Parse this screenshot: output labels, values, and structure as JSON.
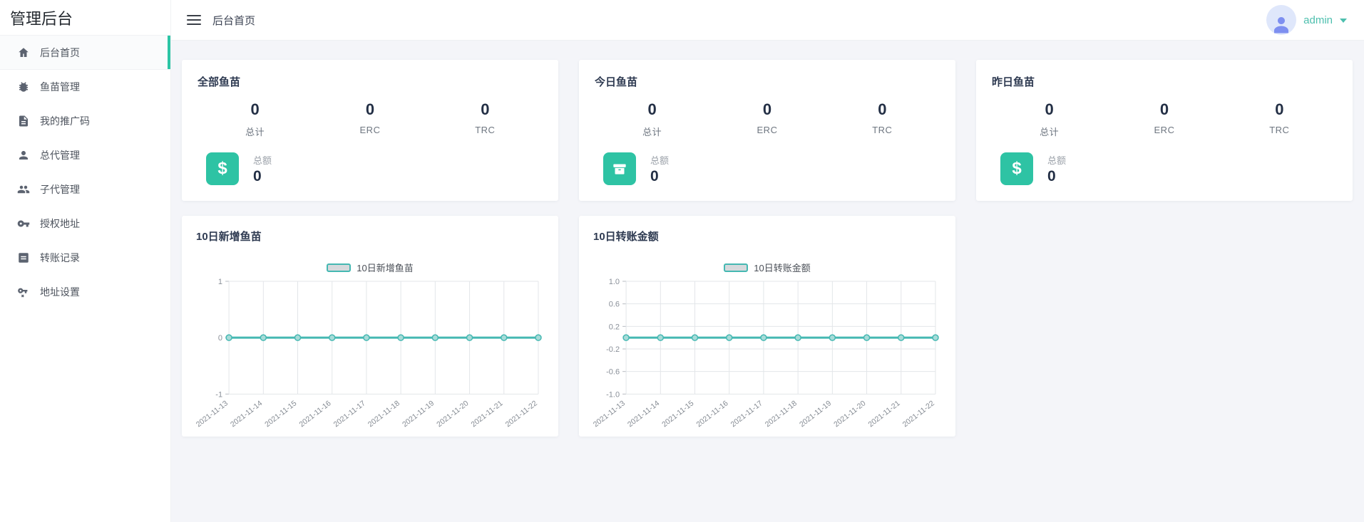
{
  "app": {
    "brand": "管理后台"
  },
  "sidebar": {
    "items": [
      {
        "label": "后台首页",
        "active": true
      },
      {
        "label": "鱼苗管理",
        "active": false
      },
      {
        "label": "我的推广码",
        "active": false
      },
      {
        "label": "总代管理",
        "active": false
      },
      {
        "label": "子代管理",
        "active": false
      },
      {
        "label": "授权地址",
        "active": false
      },
      {
        "label": "转账记录",
        "active": false
      },
      {
        "label": "地址设置",
        "active": false
      }
    ]
  },
  "topbar": {
    "title": "后台首页",
    "user": "admin"
  },
  "stat_cards": [
    {
      "title": "全部鱼苗",
      "icon": "dollar-icon",
      "metrics": [
        {
          "value": "0",
          "label": "总计"
        },
        {
          "value": "0",
          "label": "ERC"
        },
        {
          "value": "0",
          "label": "TRC"
        }
      ],
      "total_label": "总额",
      "total_value": "0"
    },
    {
      "title": "今日鱼苗",
      "icon": "archive-box-icon",
      "metrics": [
        {
          "value": "0",
          "label": "总计"
        },
        {
          "value": "0",
          "label": "ERC"
        },
        {
          "value": "0",
          "label": "TRC"
        }
      ],
      "total_label": "总额",
      "total_value": "0"
    },
    {
      "title": "昨日鱼苗",
      "icon": "dollar-icon",
      "metrics": [
        {
          "value": "0",
          "label": "总计"
        },
        {
          "value": "0",
          "label": "ERC"
        },
        {
          "value": "0",
          "label": "TRC"
        }
      ],
      "total_label": "总额",
      "total_value": "0"
    }
  ],
  "chart_data": [
    {
      "type": "line",
      "title": "10日新增鱼苗",
      "legend": "10日新增鱼苗",
      "legend_position": "top-center",
      "categories": [
        "2021-11-13",
        "2021-11-14",
        "2021-11-15",
        "2021-11-16",
        "2021-11-17",
        "2021-11-18",
        "2021-11-19",
        "2021-11-20",
        "2021-11-21",
        "2021-11-22"
      ],
      "values": [
        0,
        0,
        0,
        0,
        0,
        0,
        0,
        0,
        0,
        0
      ],
      "ylim": [
        -1,
        1
      ],
      "y_ticks": [
        "1",
        "0",
        "-1"
      ],
      "grid": true,
      "line_color": "#45b8b2"
    },
    {
      "type": "line",
      "title": "10日转账金额",
      "legend": "10日转账金额",
      "legend_position": "top-center",
      "categories": [
        "2021-11-13",
        "2021-11-14",
        "2021-11-15",
        "2021-11-16",
        "2021-11-17",
        "2021-11-18",
        "2021-11-19",
        "2021-11-20",
        "2021-11-21",
        "2021-11-22"
      ],
      "values": [
        0,
        0,
        0,
        0,
        0,
        0,
        0,
        0,
        0,
        0
      ],
      "ylim": [
        -1,
        1
      ],
      "y_ticks": [
        "1.0",
        "0.6",
        "0.2",
        "-0.2",
        "-0.6",
        "-1.0"
      ],
      "grid": true,
      "line_color": "#45b8b2"
    }
  ],
  "colors": {
    "accent_teal": "#2cc5a5",
    "stat_icon_bg": "#2ec3a4",
    "chart_line": "#45b8b2",
    "chart_marker_fill": "#a7dbd8",
    "grid_line": "#e3e6e9",
    "user_name": "#4dbfae",
    "avatar_bg": "#dfe7fb",
    "avatar_person": "#7e8ff0",
    "page_bg": "#f4f5f9"
  }
}
